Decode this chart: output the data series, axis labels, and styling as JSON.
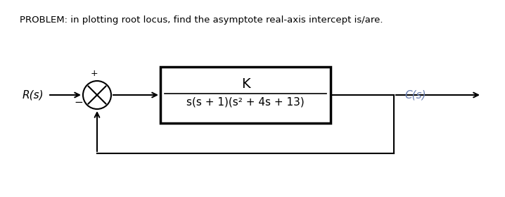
{
  "title_text": "PROBLEM: in plotting root locus, find the asymptote real-axis intercept is/are.",
  "title_fontsize": 9.5,
  "Rs_label": "R(s)",
  "Cs_label": "C(s)",
  "plus_label": "+",
  "minus_label": "−",
  "numerator": "K",
  "denominator": "s(s + 1)(s² + 4s + 13)",
  "line_color": "#000000",
  "text_color": "#000000",
  "cs_color": "#6a7fb0",
  "bg_color": "#ffffff",
  "fig_width": 7.18,
  "fig_height": 2.8,
  "dpi": 100
}
